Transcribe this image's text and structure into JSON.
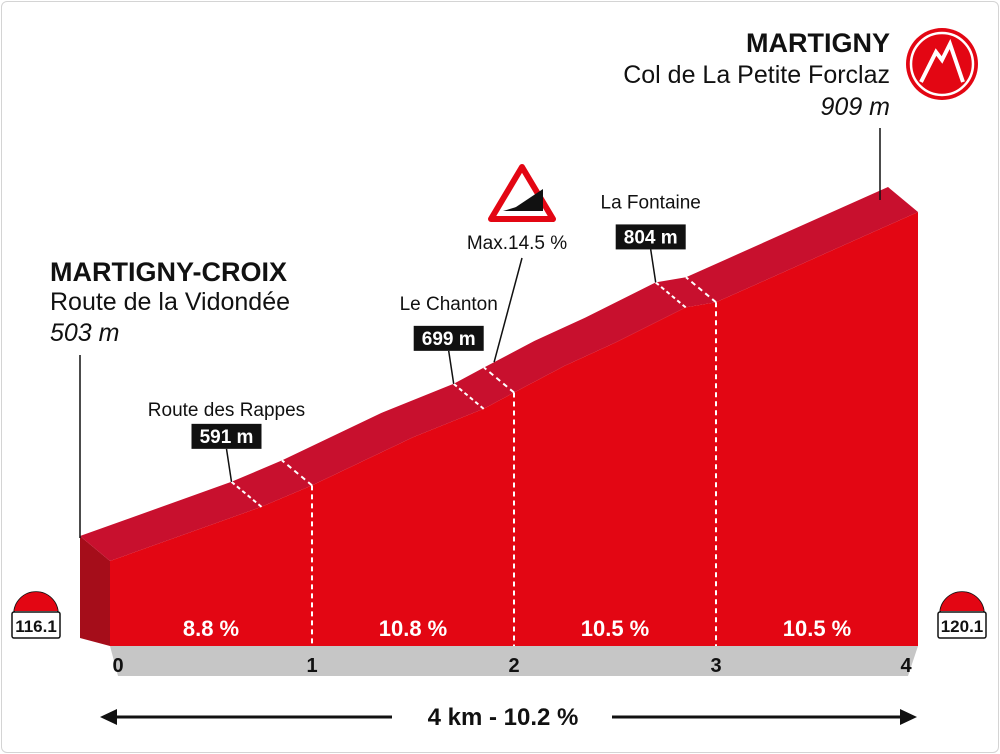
{
  "chart_data": {
    "type": "area",
    "title": "",
    "xlabel": "",
    "ylabel": "",
    "x_ticks": [
      "0",
      "1",
      "2",
      "3",
      "4"
    ],
    "xlim": [
      0,
      4
    ],
    "ylim": [
      460,
      930
    ],
    "grid": false,
    "series": [
      {
        "x": [
          0,
          0.5,
          0.75,
          1,
          1.5,
          1.85,
          2,
          2.25,
          2.5,
          2.85,
          3,
          3.2,
          4
        ],
        "values": [
          503,
          545,
          566,
          591,
          647,
          680,
          699,
          730,
          757,
          798,
          804,
          825,
          909
        ]
      }
    ],
    "gradients": [
      {
        "from": 0,
        "to": 1,
        "label": "8.8 %"
      },
      {
        "from": 1,
        "to": 2,
        "label": "10.8 %"
      },
      {
        "from": 2,
        "to": 3,
        "label": "10.5 %"
      },
      {
        "from": 3,
        "to": 4,
        "label": "10.5 %"
      }
    ],
    "total_label": "4 km - 10.2  %",
    "start": {
      "name": "MARTIGNY-CROIX",
      "place": "Route de la Vidondée",
      "altitude": "503 m",
      "marker": "116.1"
    },
    "finish": {
      "name": "MARTIGNY",
      "place": "Col de La Petite Forclaz",
      "altitude": "909 m",
      "marker": "120.1",
      "icon": "summit-finish-icon"
    },
    "steepest": {
      "label": "Max.14.5 %",
      "x": 2.05,
      "icon": "steep-gradient-warning-icon"
    },
    "waypoints": [
      {
        "name": "Route des Rappes",
        "altitude": "591 m",
        "x": 0.75
      },
      {
        "name": "Le Chanton",
        "altitude": "699 m",
        "x": 1.85
      },
      {
        "name": "La Fontaine",
        "altitude": "804 m",
        "x": 2.85
      }
    ],
    "colors": {
      "top_face": "#c8102e",
      "front_face": "#e30613",
      "side_face": "#a50d1a",
      "ground": "#c6c6c6",
      "label_box": "#111111"
    }
  }
}
